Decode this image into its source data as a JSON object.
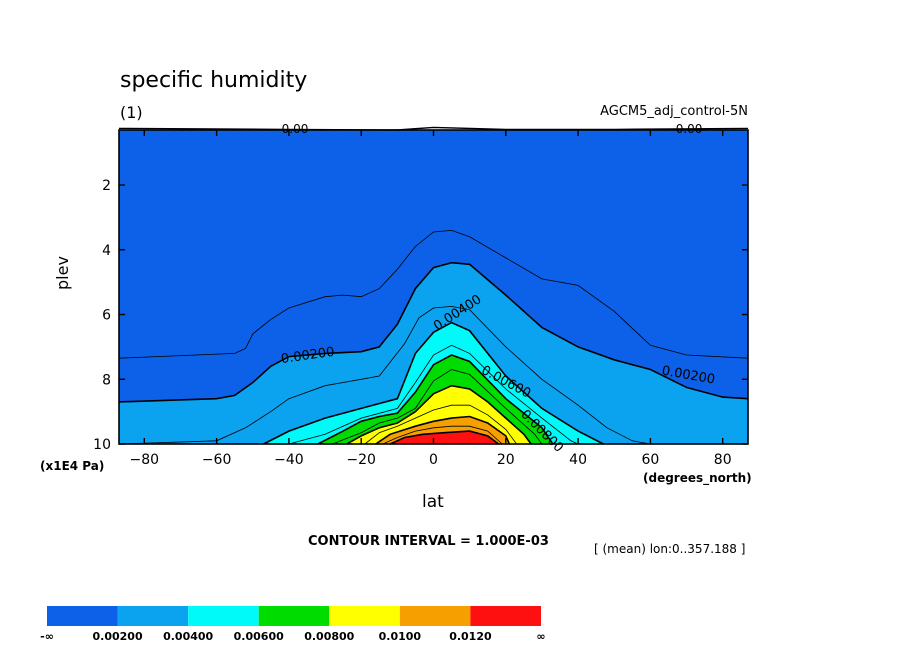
{
  "header": {
    "title": "specific humidity",
    "subtitle": "(1)",
    "dataset": "AGCM5_adj_control-5N"
  },
  "footer": {
    "contour_interval": "CONTOUR INTERVAL = 1.000E-03",
    "mean_info": "[ (mean) lon:0..357.188 ]"
  },
  "colors": {
    "fills": [
      "#0d61e8",
      "#0ba2f0",
      "#00fafa",
      "#00dc00",
      "#ffff00",
      "#f5a000",
      "#ff1010"
    ],
    "line": "#000000"
  },
  "chart_data": {
    "type": "contour",
    "title": "specific humidity",
    "subtitle": "(1)",
    "xlabel": "lat",
    "ylabel": "plev",
    "x_unit": "(degrees_north)",
    "y_unit": "(x1E4 Pa)",
    "xlim": [
      -87,
      87
    ],
    "ylim": [
      10,
      0.3
    ],
    "x_ticks": [
      -80,
      -60,
      -40,
      -20,
      0,
      20,
      40,
      60,
      80
    ],
    "y_ticks": [
      2,
      4,
      6,
      8,
      10
    ],
    "contour_interval": 0.001,
    "levels": [
      {
        "value": 0.001,
        "label": "",
        "points": [
          [
            -87,
            7.35
          ],
          [
            -55,
            7.2
          ],
          [
            -52,
            7.05
          ],
          [
            -50,
            6.6
          ],
          [
            -45,
            6.15
          ],
          [
            -40,
            5.8
          ],
          [
            -30,
            5.45
          ],
          [
            -25,
            5.4
          ],
          [
            -20,
            5.45
          ],
          [
            -15,
            5.2
          ],
          [
            -10,
            4.6
          ],
          [
            -5,
            3.9
          ],
          [
            0,
            3.45
          ],
          [
            5,
            3.4
          ],
          [
            10,
            3.6
          ],
          [
            20,
            4.25
          ],
          [
            30,
            4.9
          ],
          [
            40,
            5.1
          ],
          [
            50,
            5.9
          ],
          [
            60,
            6.95
          ],
          [
            70,
            7.25
          ],
          [
            87,
            7.35
          ]
        ]
      },
      {
        "value": 0.002,
        "label": "0.00200",
        "points": [
          [
            -87,
            8.7
          ],
          [
            -60,
            8.6
          ],
          [
            -55,
            8.5
          ],
          [
            -50,
            8.1
          ],
          [
            -45,
            7.6
          ],
          [
            -40,
            7.3
          ],
          [
            -30,
            7.2
          ],
          [
            -20,
            7.15
          ],
          [
            -15,
            7.0
          ],
          [
            -10,
            6.3
          ],
          [
            -5,
            5.2
          ],
          [
            0,
            4.55
          ],
          [
            5,
            4.4
          ],
          [
            10,
            4.45
          ],
          [
            20,
            5.4
          ],
          [
            30,
            6.4
          ],
          [
            40,
            7.0
          ],
          [
            50,
            7.4
          ],
          [
            60,
            7.7
          ],
          [
            70,
            8.25
          ],
          [
            80,
            8.55
          ],
          [
            87,
            8.6
          ]
        ]
      },
      {
        "value": 0.003,
        "label": "",
        "points": [
          [
            -87,
            10
          ],
          [
            -60,
            9.9
          ],
          [
            -52,
            9.5
          ],
          [
            -45,
            9.0
          ],
          [
            -40,
            8.6
          ],
          [
            -30,
            8.2
          ],
          [
            -20,
            8.0
          ],
          [
            -15,
            7.9
          ],
          [
            -8,
            6.9
          ],
          [
            -4,
            6.1
          ],
          [
            0,
            5.8
          ],
          [
            5,
            5.75
          ],
          [
            10,
            5.85
          ],
          [
            20,
            7.0
          ],
          [
            30,
            8.0
          ],
          [
            40,
            8.8
          ],
          [
            48,
            9.5
          ],
          [
            55,
            9.9
          ],
          [
            60,
            10
          ]
        ]
      },
      {
        "value": 0.004,
        "label": "0.00400",
        "points": [
          [
            -47,
            10
          ],
          [
            -40,
            9.6
          ],
          [
            -30,
            9.2
          ],
          [
            -20,
            8.9
          ],
          [
            -10,
            8.6
          ],
          [
            -5,
            7.2
          ],
          [
            0,
            6.55
          ],
          [
            5,
            6.25
          ],
          [
            10,
            6.5
          ],
          [
            20,
            7.9
          ],
          [
            30,
            8.9
          ],
          [
            40,
            9.6
          ],
          [
            47,
            10
          ]
        ]
      },
      {
        "value": 0.005,
        "label": "",
        "points": [
          [
            -40,
            10
          ],
          [
            -30,
            9.7
          ],
          [
            -20,
            9.2
          ],
          [
            -10,
            8.9
          ],
          [
            -5,
            8.1
          ],
          [
            0,
            7.25
          ],
          [
            5,
            6.95
          ],
          [
            10,
            7.2
          ],
          [
            20,
            8.3
          ],
          [
            30,
            9.2
          ],
          [
            38,
            9.9
          ],
          [
            40,
            10
          ]
        ]
      },
      {
        "value": 0.006,
        "label": "0.00600",
        "points": [
          [
            -32,
            10
          ],
          [
            -25,
            9.6
          ],
          [
            -20,
            9.3
          ],
          [
            -15,
            9.15
          ],
          [
            -10,
            9.05
          ],
          [
            -5,
            8.4
          ],
          [
            0,
            7.55
          ],
          [
            5,
            7.25
          ],
          [
            10,
            7.45
          ],
          [
            20,
            8.6
          ],
          [
            30,
            9.5
          ],
          [
            33,
            10
          ]
        ]
      },
      {
        "value": 0.007,
        "label": "",
        "points": [
          [
            -28,
            10
          ],
          [
            -20,
            9.65
          ],
          [
            -15,
            9.35
          ],
          [
            -10,
            9.2
          ],
          [
            -5,
            8.9
          ],
          [
            0,
            8.05
          ],
          [
            5,
            7.7
          ],
          [
            10,
            7.85
          ],
          [
            20,
            8.9
          ],
          [
            28,
            9.7
          ],
          [
            30,
            10
          ]
        ]
      },
      {
        "value": 0.008,
        "label": "0.00800",
        "points": [
          [
            -24,
            10
          ],
          [
            -20,
            9.75
          ],
          [
            -15,
            9.5
          ],
          [
            -10,
            9.35
          ],
          [
            -5,
            9.0
          ],
          [
            0,
            8.45
          ],
          [
            5,
            8.2
          ],
          [
            10,
            8.3
          ],
          [
            15,
            8.7
          ],
          [
            20,
            9.2
          ],
          [
            25,
            9.7
          ],
          [
            27,
            10
          ]
        ]
      },
      {
        "value": 0.009,
        "label": "",
        "points": [
          [
            -19,
            10
          ],
          [
            -15,
            9.65
          ],
          [
            -10,
            9.45
          ],
          [
            -5,
            9.2
          ],
          [
            0,
            8.95
          ],
          [
            5,
            8.8
          ],
          [
            10,
            8.8
          ],
          [
            15,
            9.1
          ],
          [
            20,
            9.55
          ],
          [
            23,
            10
          ]
        ]
      },
      {
        "value": 0.01,
        "label": "",
        "points": [
          [
            -16,
            10
          ],
          [
            -12,
            9.7
          ],
          [
            -5,
            9.45
          ],
          [
            0,
            9.3
          ],
          [
            5,
            9.2
          ],
          [
            10,
            9.15
          ],
          [
            15,
            9.35
          ],
          [
            20,
            9.75
          ],
          [
            21,
            10
          ]
        ]
      },
      {
        "value": 0.011,
        "label": "",
        "points": [
          [
            -14,
            10
          ],
          [
            -10,
            9.8
          ],
          [
            -5,
            9.6
          ],
          [
            0,
            9.5
          ],
          [
            5,
            9.45
          ],
          [
            10,
            9.45
          ],
          [
            15,
            9.6
          ],
          [
            19,
            10
          ]
        ]
      },
      {
        "value": 0.012,
        "label": "",
        "points": [
          [
            -12,
            10
          ],
          [
            -8,
            9.8
          ],
          [
            -3,
            9.7
          ],
          [
            3,
            9.65
          ],
          [
            10,
            9.6
          ],
          [
            15,
            9.75
          ],
          [
            18,
            10
          ]
        ]
      }
    ],
    "top_contour": {
      "value": 0.0,
      "labels": [
        "0.00",
        "0.00"
      ],
      "points": [
        [
          -87,
          0.25
        ],
        [
          -40,
          0.28
        ],
        [
          -10,
          0.3
        ],
        [
          0,
          0.22
        ],
        [
          20,
          0.28
        ],
        [
          50,
          0.28
        ],
        [
          87,
          0.25
        ]
      ]
    },
    "colorbar": {
      "labels": [
        "-∞",
        "0.00200",
        "0.00400",
        "0.00600",
        "0.00800",
        "0.0100",
        "0.0120",
        "∞"
      ]
    }
  }
}
